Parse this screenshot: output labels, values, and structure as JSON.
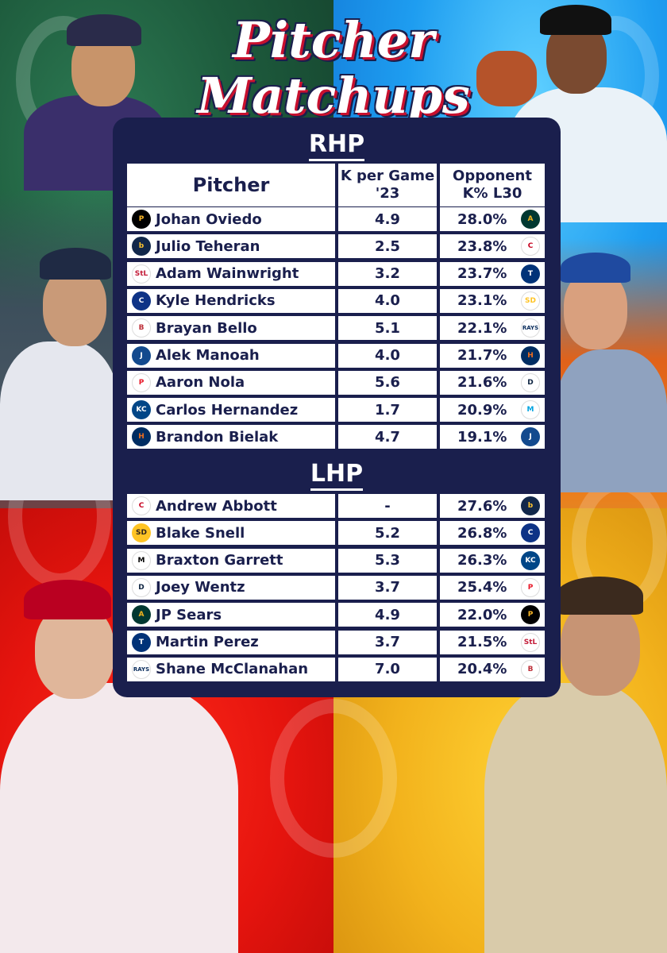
{
  "title": {
    "line1": "Pitcher",
    "line2": "Matchups"
  },
  "sections": {
    "rhp": {
      "label": "RHP",
      "headers": {
        "pitcher": "Pitcher",
        "k_per_game": "K per Game '23",
        "opp_k": "Opponent K% L30"
      },
      "rows": [
        {
          "team": "pirates-logo",
          "team_text": "P",
          "team_color": "#000000",
          "team_fg": "#fdb827",
          "name": "Johan Oviedo",
          "k": "4.9",
          "opp_k": "28.0%",
          "opp_team": "athletics-logo",
          "opp_text": "A",
          "opp_color": "#003831",
          "opp_fg": "#efb21e"
        },
        {
          "team": "brewers-logo",
          "team_text": "b",
          "team_color": "#12284b",
          "team_fg": "#ffc52f",
          "name": "Julio Teheran",
          "k": "2.5",
          "opp_k": "23.8%",
          "opp_team": "reds-logo",
          "opp_text": "C",
          "opp_color": "#ffffff",
          "opp_fg": "#c6011f"
        },
        {
          "team": "cardinals-logo",
          "team_text": "StL",
          "team_color": "#ffffff",
          "team_fg": "#c41e3a",
          "name": "Adam Wainwright",
          "k": "3.2",
          "opp_k": "23.7%",
          "opp_team": "rangers-logo",
          "opp_text": "T",
          "opp_color": "#003278",
          "opp_fg": "#ffffff"
        },
        {
          "team": "cubs-logo",
          "team_text": "C",
          "team_color": "#0e3386",
          "team_fg": "#ffffff",
          "name": "Kyle Hendricks",
          "k": "4.0",
          "opp_k": "23.1%",
          "opp_team": "padres-logo",
          "opp_text": "SD",
          "opp_color": "#ffffff",
          "opp_fg": "#ffc425"
        },
        {
          "team": "redsox-logo",
          "team_text": "B",
          "team_color": "#ffffff",
          "team_fg": "#bd3039",
          "name": "Brayan Bello",
          "k": "5.1",
          "opp_k": "22.1%",
          "opp_team": "rays-logo",
          "opp_text": "RAYS",
          "opp_color": "#ffffff",
          "opp_fg": "#092c5c"
        },
        {
          "team": "bluejays-logo",
          "team_text": "J",
          "team_color": "#134a8e",
          "team_fg": "#ffffff",
          "name": "Alek Manoah",
          "k": "4.0",
          "opp_k": "21.7%",
          "opp_team": "astros-logo",
          "opp_text": "H",
          "opp_color": "#002d62",
          "opp_fg": "#eb6e1f"
        },
        {
          "team": "phillies-logo",
          "team_text": "P",
          "team_color": "#ffffff",
          "team_fg": "#e81828",
          "name": "Aaron Nola",
          "k": "5.6",
          "opp_k": "21.6%",
          "opp_team": "tigers-logo",
          "opp_text": "D",
          "opp_color": "#ffffff",
          "opp_fg": "#0c2340"
        },
        {
          "team": "royals-logo",
          "team_text": "KC",
          "team_color": "#004687",
          "team_fg": "#ffffff",
          "name": "Carlos Hernandez",
          "k": "1.7",
          "opp_k": "20.9%",
          "opp_team": "marlins-logo",
          "opp_text": "M",
          "opp_color": "#ffffff",
          "opp_fg": "#00a3e0"
        },
        {
          "team": "astros-logo",
          "team_text": "H",
          "team_color": "#002d62",
          "team_fg": "#eb6e1f",
          "name": "Brandon Bielak",
          "k": "4.7",
          "opp_k": "19.1%",
          "opp_team": "bluejays-logo",
          "opp_text": "J",
          "opp_color": "#134a8e",
          "opp_fg": "#ffffff"
        }
      ]
    },
    "lhp": {
      "label": "LHP",
      "rows": [
        {
          "team": "reds-logo",
          "team_text": "C",
          "team_color": "#ffffff",
          "team_fg": "#c6011f",
          "name": "Andrew Abbott",
          "k": "-",
          "opp_k": "27.6%",
          "opp_team": "brewers-logo",
          "opp_text": "b",
          "opp_color": "#12284b",
          "opp_fg": "#ffc52f"
        },
        {
          "team": "padres-logo",
          "team_text": "SD",
          "team_color": "#ffc425",
          "team_fg": "#2f241d",
          "name": "Blake Snell",
          "k": "5.2",
          "opp_k": "26.8%",
          "opp_team": "cubs-logo",
          "opp_text": "C",
          "opp_color": "#0e3386",
          "opp_fg": "#ffffff"
        },
        {
          "team": "marlins-logo",
          "team_text": "M",
          "team_color": "#ffffff",
          "team_fg": "#000000",
          "name": "Braxton Garrett",
          "k": "5.3",
          "opp_k": "26.3%",
          "opp_team": "royals-logo",
          "opp_text": "KC",
          "opp_color": "#004687",
          "opp_fg": "#ffffff"
        },
        {
          "team": "tigers-logo",
          "team_text": "D",
          "team_color": "#ffffff",
          "team_fg": "#0c2340",
          "name": "Joey Wentz",
          "k": "3.7",
          "opp_k": "25.4%",
          "opp_team": "phillies-logo",
          "opp_text": "P",
          "opp_color": "#ffffff",
          "opp_fg": "#e81828"
        },
        {
          "team": "athletics-logo",
          "team_text": "A",
          "team_color": "#003831",
          "team_fg": "#efb21e",
          "name": "JP Sears",
          "k": "4.9",
          "opp_k": "22.0%",
          "opp_team": "pirates-logo",
          "opp_text": "P",
          "opp_color": "#000000",
          "opp_fg": "#fdb827"
        },
        {
          "team": "rangers-logo",
          "team_text": "T",
          "team_color": "#003278",
          "team_fg": "#ffffff",
          "name": "Martin Perez",
          "k": "3.7",
          "opp_k": "21.5%",
          "opp_team": "cardinals-logo",
          "opp_text": "StL",
          "opp_color": "#ffffff",
          "opp_fg": "#c41e3a"
        },
        {
          "team": "rays-logo",
          "team_text": "RAYS",
          "team_color": "#ffffff",
          "team_fg": "#092c5c",
          "name": "Shane McClanahan",
          "k": "7.0",
          "opp_k": "20.4%",
          "opp_team": "redsox-logo",
          "opp_text": "B",
          "opp_color": "#ffffff",
          "opp_fg": "#bd3039"
        }
      ]
    }
  }
}
